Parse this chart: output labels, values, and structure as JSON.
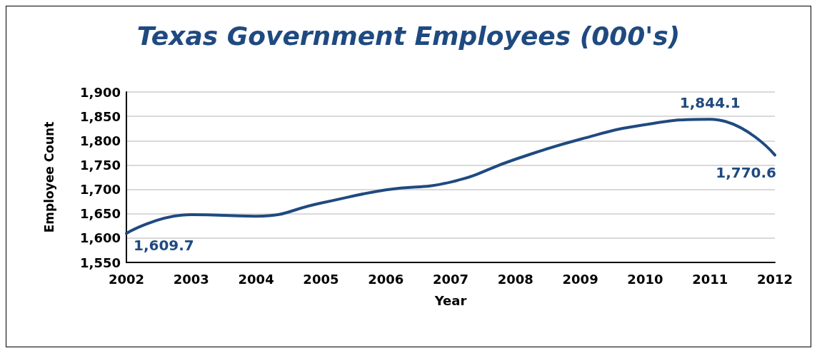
{
  "chart_data": {
    "type": "line",
    "title": "Texas Government Employees (000's)",
    "xlabel": "Year",
    "ylabel": "Employee Count",
    "categories": [
      "2002",
      "2003",
      "2004",
      "2005",
      "2006",
      "2007",
      "2008",
      "2009",
      "2010",
      "2011",
      "2012"
    ],
    "series": [
      {
        "color": "#1f4a80",
        "values": [
          1609.7,
          1648,
          1645,
          1672,
          1699,
          1715,
          1762,
          1803,
          1833,
          1844.1,
          1770.6
        ],
        "value_labels": [
          "1,609.7",
          null,
          null,
          null,
          null,
          null,
          null,
          null,
          null,
          "1,844.1",
          "1,770.6"
        ]
      }
    ],
    "ylim": [
      1550,
      1900
    ],
    "yticks": [
      {
        "value": 1550,
        "label": "1,550"
      },
      {
        "value": 1600,
        "label": "1,600"
      },
      {
        "value": 1650,
        "label": "1,650"
      },
      {
        "value": 1700,
        "label": "1,700"
      },
      {
        "value": 1750,
        "label": "1,750"
      },
      {
        "value": 1800,
        "label": "1,800"
      },
      {
        "value": 1850,
        "label": "1,850"
      },
      {
        "value": 1900,
        "label": "1,900"
      }
    ],
    "grid": "y",
    "marker": "none",
    "line_style": "solid"
  }
}
